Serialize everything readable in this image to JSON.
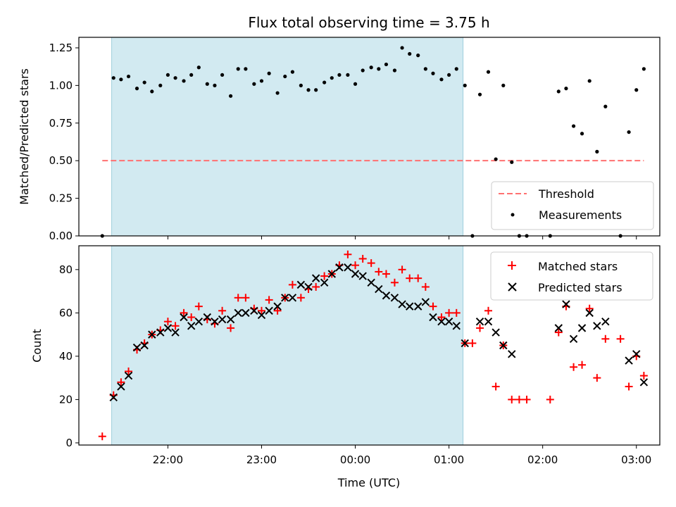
{
  "chart_data": [
    {
      "type": "scatter",
      "title": "Flux total observing time = 3.75 h",
      "xlabel": "",
      "ylabel": "Matched/Predicted stars",
      "ylim": [
        0,
        1.32
      ],
      "yticks": [
        "0.00",
        "0.25",
        "0.50",
        "0.75",
        "1.00",
        "1.25"
      ],
      "ytick_values": [
        0,
        0.25,
        0.5,
        0.75,
        1.0,
        1.25
      ],
      "x_unit": "hours (UTC, offset from 00:00)",
      "xlim": [
        -2.95,
        3.25
      ],
      "shaded_span": {
        "from": -2.6,
        "to": 1.15
      },
      "threshold": {
        "name": "Threshold",
        "y": 0.5,
        "x_from": -2.7,
        "x_to": 3.08,
        "color": "#ff7070"
      },
      "legend": {
        "position": "lower-right",
        "entries": [
          "Threshold",
          "Measurements"
        ]
      },
      "series": [
        {
          "name": "Measurements",
          "color": "#000000",
          "points": [
            [
              -2.7,
              0.0
            ],
            [
              -2.58,
              1.05
            ],
            [
              -2.5,
              1.04
            ],
            [
              -2.42,
              1.06
            ],
            [
              -2.33,
              0.98
            ],
            [
              -2.25,
              1.02
            ],
            [
              -2.17,
              0.96
            ],
            [
              -2.08,
              1.0
            ],
            [
              -2.0,
              1.07
            ],
            [
              -1.92,
              1.05
            ],
            [
              -1.83,
              1.03
            ],
            [
              -1.75,
              1.07
            ],
            [
              -1.67,
              1.12
            ],
            [
              -1.58,
              1.01
            ],
            [
              -1.5,
              1.0
            ],
            [
              -1.42,
              1.07
            ],
            [
              -1.33,
              0.93
            ],
            [
              -1.25,
              1.11
            ],
            [
              -1.17,
              1.11
            ],
            [
              -1.08,
              1.01
            ],
            [
              -1.0,
              1.03
            ],
            [
              -0.92,
              1.08
            ],
            [
              -0.83,
              0.95
            ],
            [
              -0.75,
              1.06
            ],
            [
              -0.67,
              1.09
            ],
            [
              -0.58,
              1.0
            ],
            [
              -0.5,
              0.97
            ],
            [
              -0.42,
              0.97
            ],
            [
              -0.33,
              1.02
            ],
            [
              -0.25,
              1.05
            ],
            [
              -0.17,
              1.07
            ],
            [
              -0.08,
              1.07
            ],
            [
              0.0,
              1.01
            ],
            [
              0.08,
              1.1
            ],
            [
              0.17,
              1.12
            ],
            [
              0.25,
              1.11
            ],
            [
              0.33,
              1.14
            ],
            [
              0.42,
              1.1
            ],
            [
              0.5,
              1.25
            ],
            [
              0.58,
              1.21
            ],
            [
              0.67,
              1.2
            ],
            [
              0.75,
              1.11
            ],
            [
              0.83,
              1.08
            ],
            [
              0.92,
              1.04
            ],
            [
              1.0,
              1.07
            ],
            [
              1.08,
              1.11
            ],
            [
              1.17,
              1.0
            ],
            [
              1.25,
              0.0
            ],
            [
              1.33,
              0.94
            ],
            [
              1.42,
              1.09
            ],
            [
              1.5,
              0.51
            ],
            [
              1.58,
              1.0
            ],
            [
              1.67,
              0.49
            ],
            [
              1.75,
              0.0
            ],
            [
              1.83,
              0.0
            ],
            [
              2.08,
              0.0
            ],
            [
              2.17,
              0.96
            ],
            [
              2.25,
              0.98
            ],
            [
              2.33,
              0.73
            ],
            [
              2.42,
              0.68
            ],
            [
              2.5,
              1.03
            ],
            [
              2.58,
              0.56
            ],
            [
              2.67,
              0.86
            ],
            [
              2.83,
              0.0
            ],
            [
              2.92,
              0.69
            ],
            [
              3.0,
              0.97
            ],
            [
              3.08,
              1.11
            ]
          ]
        }
      ]
    },
    {
      "type": "scatter",
      "title": "",
      "xlabel": "Time (UTC)",
      "ylabel": "Count",
      "ylim": [
        -1,
        91
      ],
      "yticks": [
        "0",
        "20",
        "40",
        "60",
        "80"
      ],
      "ytick_values": [
        0,
        20,
        40,
        60,
        80
      ],
      "x_unit": "hours (UTC, offset from 00:00)",
      "xlim": [
        -2.95,
        3.25
      ],
      "xticks": [
        "22:00",
        "23:00",
        "00:00",
        "01:00",
        "02:00",
        "03:00"
      ],
      "xtick_values": [
        -2,
        -1,
        0,
        1,
        2,
        3
      ],
      "shaded_span": {
        "from": -2.6,
        "to": 1.15
      },
      "legend": {
        "position": "upper-right",
        "entries": [
          "Matched stars",
          "Predicted stars"
        ]
      },
      "series": [
        {
          "name": "Matched stars",
          "color": "#ff0000",
          "marker": "plus",
          "points": [
            [
              -2.7,
              3
            ],
            [
              -2.58,
              22
            ],
            [
              -2.5,
              28
            ],
            [
              -2.42,
              33
            ],
            [
              -2.33,
              43
            ],
            [
              -2.25,
              46
            ],
            [
              -2.17,
              50
            ],
            [
              -2.08,
              52
            ],
            [
              -2.0,
              56
            ],
            [
              -1.92,
              54
            ],
            [
              -1.83,
              60
            ],
            [
              -1.75,
              58
            ],
            [
              -1.67,
              63
            ],
            [
              -1.58,
              57
            ],
            [
              -1.5,
              55
            ],
            [
              -1.42,
              61
            ],
            [
              -1.33,
              53
            ],
            [
              -1.25,
              67
            ],
            [
              -1.17,
              67
            ],
            [
              -1.08,
              62
            ],
            [
              -1.0,
              61
            ],
            [
              -0.92,
              66
            ],
            [
              -0.83,
              61
            ],
            [
              -0.75,
              67
            ],
            [
              -0.67,
              73
            ],
            [
              -0.58,
              67
            ],
            [
              -0.5,
              71
            ],
            [
              -0.42,
              72
            ],
            [
              -0.33,
              77
            ],
            [
              -0.25,
              78
            ],
            [
              -0.17,
              82
            ],
            [
              -0.08,
              87
            ],
            [
              0.0,
              82
            ],
            [
              0.08,
              85
            ],
            [
              0.17,
              83
            ],
            [
              0.25,
              79
            ],
            [
              0.33,
              78
            ],
            [
              0.42,
              74
            ],
            [
              0.5,
              80
            ],
            [
              0.58,
              76
            ],
            [
              0.67,
              76
            ],
            [
              0.75,
              72
            ],
            [
              0.83,
              63
            ],
            [
              0.92,
              58
            ],
            [
              1.0,
              60
            ],
            [
              1.08,
              60
            ],
            [
              1.17,
              46
            ],
            [
              1.25,
              46
            ],
            [
              1.33,
              53
            ],
            [
              1.42,
              61
            ],
            [
              1.5,
              26
            ],
            [
              1.58,
              45
            ],
            [
              1.67,
              20
            ],
            [
              1.75,
              20
            ],
            [
              1.83,
              20
            ],
            [
              2.08,
              20
            ],
            [
              2.17,
              51
            ],
            [
              2.25,
              63
            ],
            [
              2.33,
              35
            ],
            [
              2.42,
              36
            ],
            [
              2.5,
              62
            ],
            [
              2.58,
              30
            ],
            [
              2.67,
              48
            ],
            [
              2.83,
              48
            ],
            [
              2.92,
              26
            ],
            [
              3.0,
              40
            ],
            [
              3.08,
              31
            ]
          ]
        },
        {
          "name": "Predicted stars",
          "color": "#000000",
          "marker": "x",
          "points": [
            [
              -2.58,
              21
            ],
            [
              -2.5,
              26
            ],
            [
              -2.42,
              31
            ],
            [
              -2.33,
              44
            ],
            [
              -2.25,
              45
            ],
            [
              -2.17,
              50
            ],
            [
              -2.08,
              51
            ],
            [
              -2.0,
              53
            ],
            [
              -1.92,
              51
            ],
            [
              -1.83,
              58
            ],
            [
              -1.75,
              54
            ],
            [
              -1.67,
              56
            ],
            [
              -1.58,
              58
            ],
            [
              -1.5,
              56
            ],
            [
              -1.42,
              57
            ],
            [
              -1.33,
              57
            ],
            [
              -1.25,
              60
            ],
            [
              -1.17,
              60
            ],
            [
              -1.08,
              61
            ],
            [
              -1.0,
              59
            ],
            [
              -0.92,
              61
            ],
            [
              -0.83,
              63
            ],
            [
              -0.75,
              67
            ],
            [
              -0.67,
              67
            ],
            [
              -0.58,
              73
            ],
            [
              -0.5,
              72
            ],
            [
              -0.42,
              76
            ],
            [
              -0.33,
              74
            ],
            [
              -0.25,
              78
            ],
            [
              -0.17,
              81
            ],
            [
              -0.08,
              81
            ],
            [
              0.0,
              78
            ],
            [
              0.08,
              77
            ],
            [
              0.17,
              74
            ],
            [
              0.25,
              71
            ],
            [
              0.33,
              68
            ],
            [
              0.42,
              67
            ],
            [
              0.5,
              64
            ],
            [
              0.58,
              63
            ],
            [
              0.67,
              63
            ],
            [
              0.75,
              65
            ],
            [
              0.83,
              58
            ],
            [
              0.92,
              56
            ],
            [
              1.0,
              56
            ],
            [
              1.08,
              54
            ],
            [
              1.17,
              46
            ],
            [
              1.33,
              56
            ],
            [
              1.42,
              56
            ],
            [
              1.5,
              51
            ],
            [
              1.58,
              45
            ],
            [
              1.67,
              41
            ],
            [
              2.17,
              53
            ],
            [
              2.25,
              64
            ],
            [
              2.33,
              48
            ],
            [
              2.42,
              53
            ],
            [
              2.5,
              60
            ],
            [
              2.58,
              54
            ],
            [
              2.67,
              56
            ],
            [
              2.92,
              38
            ],
            [
              3.0,
              41
            ],
            [
              3.08,
              28
            ]
          ]
        }
      ]
    }
  ]
}
